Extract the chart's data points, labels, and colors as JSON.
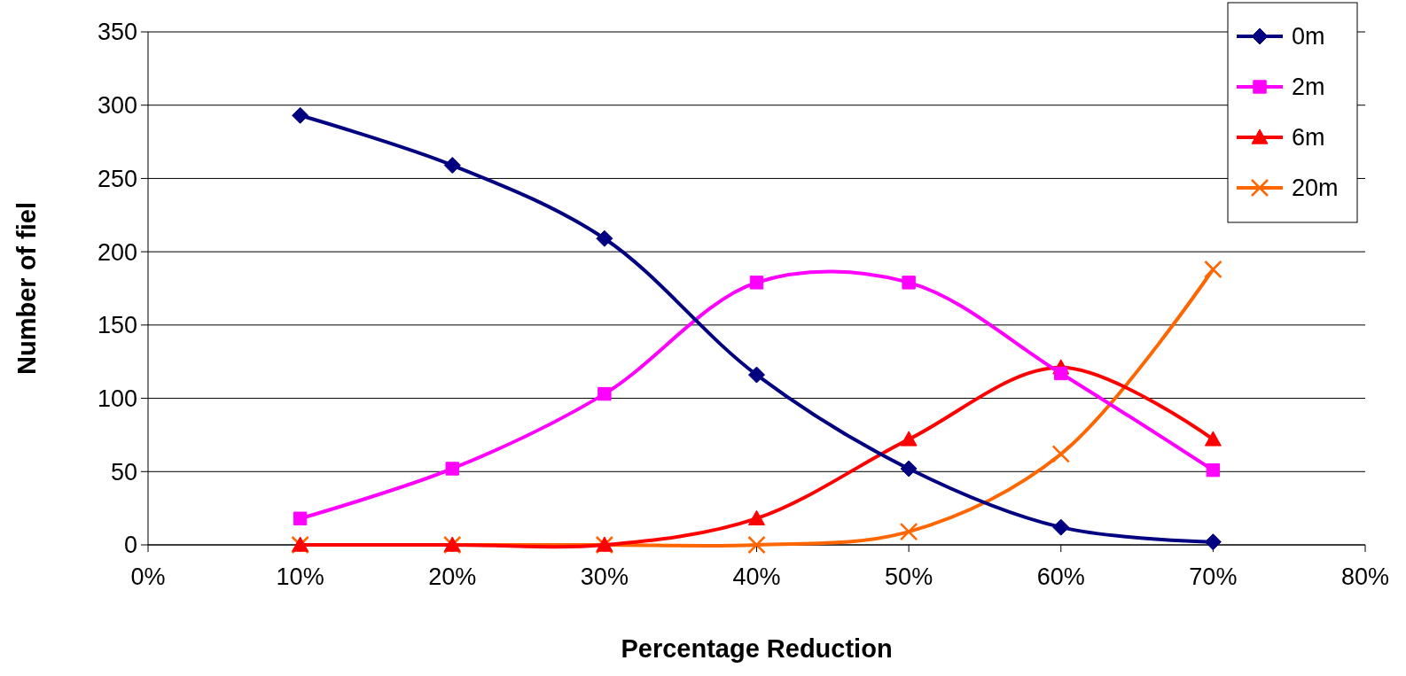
{
  "chart_data": {
    "type": "line",
    "xlabel": "Percentage Reduction",
    "ylabel": "Number of fiel",
    "x": [
      10,
      20,
      30,
      40,
      50,
      60,
      70
    ],
    "series": [
      {
        "name": "0m",
        "color": "#000080",
        "marker": "diamond",
        "values": [
          293,
          259,
          209,
          116,
          52,
          12,
          2
        ]
      },
      {
        "name": "2m",
        "color": "#ff00ff",
        "marker": "square",
        "values": [
          18,
          52,
          103,
          179,
          179,
          117,
          51
        ]
      },
      {
        "name": "6m",
        "color": "#ff0000",
        "marker": "triangle",
        "values": [
          0,
          0,
          0,
          18,
          72,
          121,
          72
        ]
      },
      {
        "name": "20m",
        "color": "#ff6600",
        "marker": "cross",
        "values": [
          0,
          0,
          0,
          0,
          9,
          62,
          188
        ]
      }
    ],
    "xlim": [
      0,
      80
    ],
    "xticks": [
      {
        "value": 0,
        "label": "0%"
      },
      {
        "value": 10,
        "label": "10%"
      },
      {
        "value": 20,
        "label": "20%"
      },
      {
        "value": 30,
        "label": "30%"
      },
      {
        "value": 40,
        "label": "40%"
      },
      {
        "value": 50,
        "label": "50%"
      },
      {
        "value": 60,
        "label": "60%"
      },
      {
        "value": 70,
        "label": "70%"
      },
      {
        "value": 80,
        "label": "80%"
      }
    ],
    "ylim": [
      0,
      350
    ],
    "yticks": [
      0,
      50,
      100,
      150,
      200,
      250,
      300,
      350
    ],
    "grid": "y",
    "legend": "top right",
    "line_style": "solid"
  }
}
